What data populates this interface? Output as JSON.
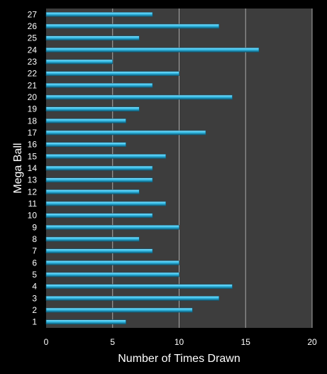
{
  "colors": {
    "page_background": "#000000",
    "plot_background": "#3d3d3d",
    "gridline": "#a8a8a8",
    "bar_fill": "#33bde8",
    "bar_highlight": "#8fe3ff",
    "bar_shadow": "#0d5d7a",
    "text": "#ffffff"
  },
  "chart_data": {
    "type": "bar",
    "orientation": "horizontal",
    "title": "",
    "xlabel": "Number of Times Drawn",
    "ylabel": "Mega Ball",
    "xlim": [
      0,
      20
    ],
    "x_ticks": [
      0,
      5,
      10,
      15,
      20
    ],
    "grid": true,
    "legend": "none",
    "categories": [
      "1",
      "2",
      "3",
      "4",
      "5",
      "6",
      "7",
      "8",
      "9",
      "10",
      "11",
      "12",
      "13",
      "14",
      "15",
      "16",
      "17",
      "18",
      "19",
      "20",
      "21",
      "22",
      "23",
      "24",
      "25",
      "26",
      "27"
    ],
    "values": [
      6,
      11,
      13,
      14,
      10,
      10,
      8,
      7,
      10,
      8,
      9,
      7,
      8,
      8,
      9,
      6,
      12,
      6,
      7,
      14,
      8,
      10,
      5,
      16,
      7,
      13,
      8
    ]
  }
}
